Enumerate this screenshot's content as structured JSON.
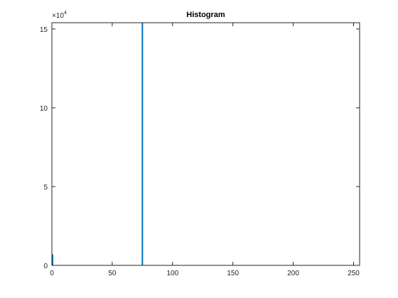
{
  "chart_data": {
    "type": "bar",
    "title": "Histogram",
    "xlabel": "",
    "ylabel": "",
    "xlim": [
      0,
      255
    ],
    "ylim": [
      0,
      154000
    ],
    "y_exponent_label": "×10",
    "y_exponent_power": "4",
    "x_ticks": [
      0,
      50,
      100,
      150,
      200,
      250
    ],
    "x_tick_labels": [
      "0",
      "50",
      "100",
      "150",
      "200",
      "250"
    ],
    "y_ticks": [
      0,
      50000,
      100000,
      150000
    ],
    "y_tick_labels": [
      "0",
      "5",
      "10",
      "15"
    ],
    "grid": false,
    "series": [
      {
        "x": [
          0,
          75
        ],
        "values": [
          7000,
          154000
        ]
      }
    ],
    "color": "#0072BD"
  }
}
